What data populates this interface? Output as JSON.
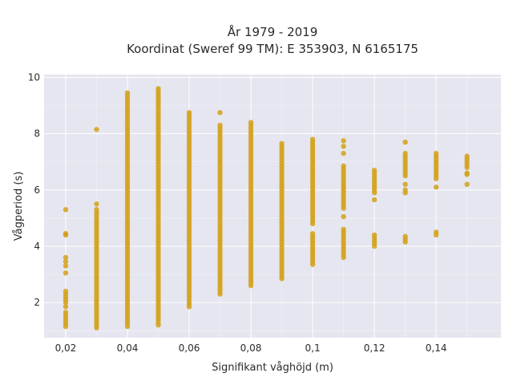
{
  "chart_data": {
    "type": "scatter",
    "title_line1": "År 1979 - 2019",
    "title_line2": "Koordinat (Sweref 99 TM): E 353903, N 6165175",
    "xlabel": "Signifikant våghöjd (m)",
    "ylabel": "Vågperiod (s)",
    "xlim": [
      0.013,
      0.161
    ],
    "ylim": [
      0.75,
      10.1
    ],
    "x_ticks": [
      {
        "value": 0.02,
        "label": "0,02"
      },
      {
        "value": 0.04,
        "label": "0,04"
      },
      {
        "value": 0.06,
        "label": "0,06"
      },
      {
        "value": 0.08,
        "label": "0,08"
      },
      {
        "value": 0.1,
        "label": "0,1"
      },
      {
        "value": 0.12,
        "label": "0,12"
      },
      {
        "value": 0.14,
        "label": "0,14"
      }
    ],
    "y_ticks": [
      {
        "value": 2,
        "label": "2"
      },
      {
        "value": 4,
        "label": "4"
      },
      {
        "value": 6,
        "label": "6"
      },
      {
        "value": 8,
        "label": "8"
      },
      {
        "value": 10,
        "label": "10"
      }
    ],
    "grid": true,
    "point_color": "#d4a017",
    "background_color": "#e5e6ef",
    "series": [
      {
        "x": 0.02,
        "y_ranges": [
          [
            1.15,
            1.65
          ],
          [
            2.0,
            2.45
          ]
        ],
        "y_points": [
          1.85,
          3.05,
          3.3,
          3.45,
          3.6,
          4.4,
          4.45,
          5.3
        ]
      },
      {
        "x": 0.03,
        "y_ranges": [
          [
            1.1,
            5.3
          ]
        ],
        "y_points": [
          5.5,
          8.15
        ]
      },
      {
        "x": 0.04,
        "y_ranges": [
          [
            1.15,
            9.5
          ]
        ],
        "y_points": []
      },
      {
        "x": 0.05,
        "y_ranges": [
          [
            1.2,
            9.6
          ]
        ],
        "y_points": []
      },
      {
        "x": 0.06,
        "y_ranges": [
          [
            1.85,
            8.75
          ]
        ],
        "y_points": []
      },
      {
        "x": 0.07,
        "y_ranges": [
          [
            2.3,
            8.3
          ]
        ],
        "y_points": [
          8.75
        ]
      },
      {
        "x": 0.08,
        "y_ranges": [
          [
            2.6,
            8.4
          ]
        ],
        "y_points": []
      },
      {
        "x": 0.09,
        "y_ranges": [
          [
            2.85,
            7.7
          ]
        ],
        "y_points": []
      },
      {
        "x": 0.1,
        "y_ranges": [
          [
            3.35,
            4.5
          ],
          [
            4.8,
            7.8
          ]
        ],
        "y_points": []
      },
      {
        "x": 0.11,
        "y_ranges": [
          [
            3.6,
            4.6
          ],
          [
            5.35,
            6.9
          ]
        ],
        "y_points": [
          5.05,
          7.3,
          7.55,
          7.75
        ]
      },
      {
        "x": 0.12,
        "y_ranges": [
          [
            4.0,
            4.45
          ],
          [
            5.9,
            6.75
          ]
        ],
        "y_points": [
          5.65
        ]
      },
      {
        "x": 0.13,
        "y_ranges": [
          [
            6.5,
            7.3
          ]
        ],
        "y_points": [
          4.15,
          4.25,
          4.35,
          5.9,
          6.0,
          6.2,
          7.7
        ]
      },
      {
        "x": 0.14,
        "y_ranges": [
          [
            6.4,
            7.3
          ]
        ],
        "y_points": [
          4.4,
          4.5,
          6.1
        ]
      },
      {
        "x": 0.15,
        "y_ranges": [
          [
            6.8,
            7.2
          ]
        ],
        "y_points": [
          6.2,
          6.55,
          6.6
        ]
      }
    ]
  }
}
